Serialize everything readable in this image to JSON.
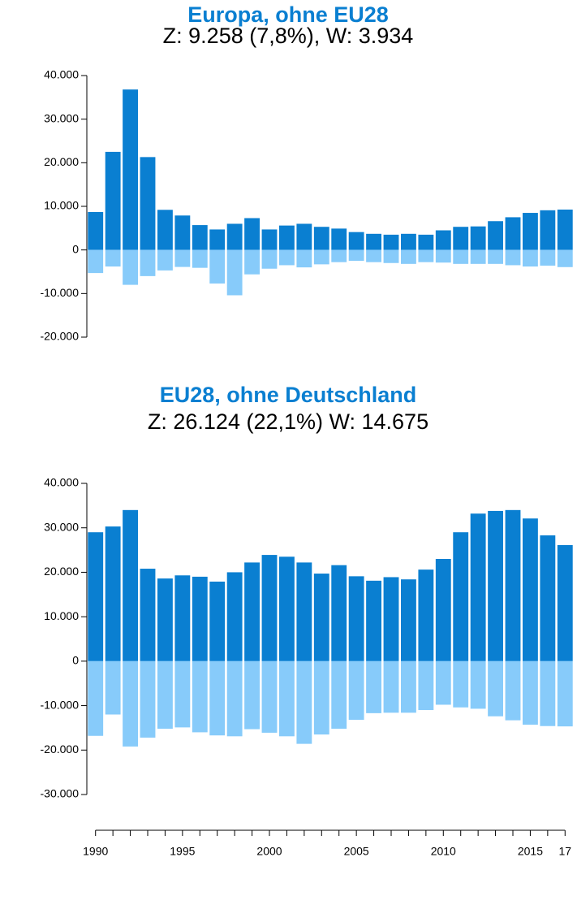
{
  "chart_data": [
    {
      "type": "bar",
      "title": "Europa, ohne EU28",
      "subtitle": "Z: 9.258 (7,8%), W: 3.934",
      "series": [
        {
          "color": "#0a7fd1",
          "values": [
            8700,
            22500,
            36800,
            21300,
            9200,
            7900,
            5700,
            4700,
            6000,
            7300,
            4700,
            5600,
            6000,
            5300,
            4900,
            4100,
            3700,
            3500,
            3700,
            3500,
            4500,
            5300,
            5400,
            6600,
            7500,
            8500,
            9100,
            9258
          ]
        },
        {
          "color": "#87cbfa",
          "values": [
            -5300,
            -3800,
            -8000,
            -6000,
            -4700,
            -3900,
            -4100,
            -7700,
            -10400,
            -5600,
            -4300,
            -3500,
            -4000,
            -3300,
            -2800,
            -2500,
            -2800,
            -3000,
            -3200,
            -2800,
            -2900,
            -3200,
            -3200,
            -3200,
            -3500,
            -3800,
            -3600,
            -3934
          ]
        }
      ],
      "ylim": [
        -20000,
        40000
      ],
      "yticks": [
        {
          "value": 40000,
          "label": "40.000"
        },
        {
          "value": 30000,
          "label": "30.000"
        },
        {
          "value": 20000,
          "label": "20.000"
        },
        {
          "value": 10000,
          "label": "10.000"
        },
        0,
        {
          "value": -10000,
          "label": "-10.000"
        },
        {
          "value": -20000,
          "label": "-20.000"
        }
      ]
    },
    {
      "type": "bar",
      "title": "EU28, ohne Deutschland",
      "subtitle": "Z: 26.124 (22,1%) W: 14.675",
      "series": [
        {
          "color": "#0a7fd1",
          "values": [
            29000,
            30300,
            34000,
            20800,
            18600,
            19300,
            19000,
            17900,
            20000,
            22200,
            23900,
            23500,
            22200,
            19700,
            21600,
            19100,
            18100,
            18900,
            18400,
            20600,
            23000,
            29000,
            33200,
            33800,
            34000,
            32100,
            28300,
            26124
          ]
        },
        {
          "color": "#87cbfa",
          "values": [
            -16800,
            -12000,
            -19200,
            -17200,
            -15200,
            -14900,
            -16000,
            -16700,
            -16900,
            -15300,
            -16100,
            -16900,
            -18600,
            -16500,
            -15200,
            -13200,
            -11700,
            -11600,
            -11600,
            -11000,
            -9800,
            -10400,
            -10700,
            -12400,
            -13300,
            -14300,
            -14600,
            -14675
          ]
        }
      ],
      "ylim": [
        -30000,
        40000
      ],
      "yticks": [
        {
          "value": 40000,
          "label": "40.000"
        },
        {
          "value": 30000,
          "label": "30.000"
        },
        {
          "value": 20000,
          "label": "20.000"
        },
        {
          "value": 10000,
          "label": "10.000"
        },
        0,
        {
          "value": -10000,
          "label": "-10.000"
        },
        {
          "value": -20000,
          "label": "-20.000"
        },
        {
          "value": -30000,
          "label": "-30.000"
        }
      ]
    }
  ],
  "x_axis": {
    "categories": [
      "1990",
      null,
      null,
      null,
      null,
      "1995",
      null,
      null,
      null,
      null,
      "2000",
      null,
      null,
      null,
      null,
      "2005",
      null,
      null,
      null,
      null,
      "2010",
      null,
      null,
      null,
      null,
      "2015",
      null,
      "17"
    ]
  }
}
